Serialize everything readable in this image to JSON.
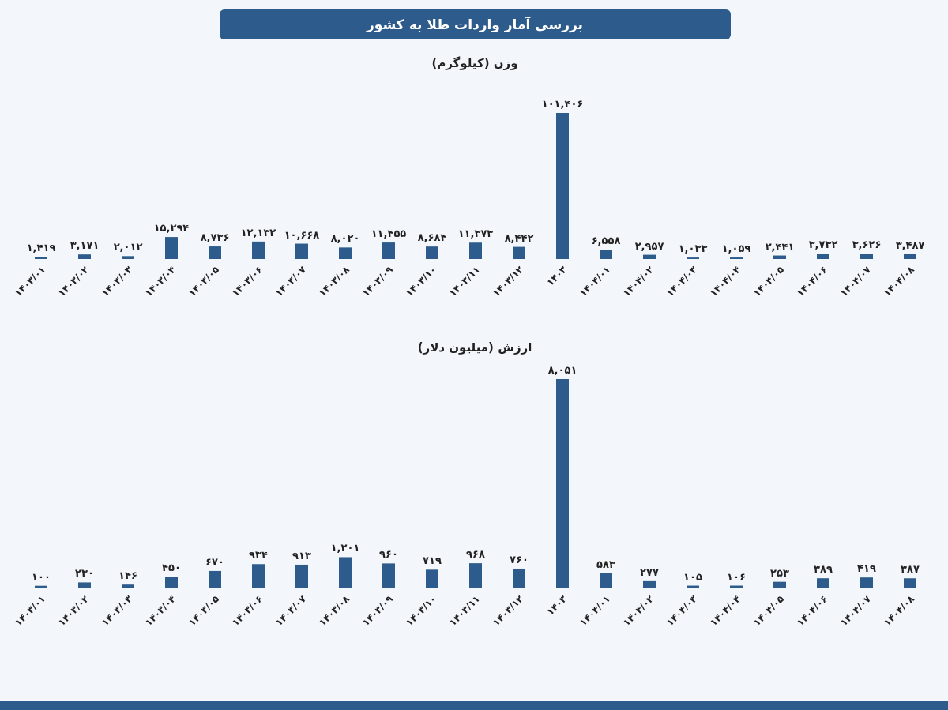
{
  "chart_data": [
    {
      "type": "bar",
      "title": "بررسی آمار واردات طلا به کشور",
      "subtitle": "وزن (کیلوگرم)",
      "color": "#2d5b8b",
      "categories": [
        "۱۴۰۳/۰۱",
        "۱۴۰۳/۰۲",
        "۱۴۰۳/۰۳",
        "۱۴۰۳/۰۴",
        "۱۴۰۳/۰۵",
        "۱۴۰۳/۰۶",
        "۱۴۰۳/۰۷",
        "۱۴۰۳/۰۸",
        "۱۴۰۳/۰۹",
        "۱۴۰۳/۱۰",
        "۱۴۰۳/۱۱",
        "۱۴۰۳/۱۲",
        "۱۴۰۳",
        "۱۴۰۴/۰۱",
        "۱۴۰۴/۰۲",
        "۱۴۰۴/۰۳",
        "۱۴۰۴/۰۴",
        "۱۴۰۴/۰۵",
        "۱۴۰۴/۰۶",
        "۱۴۰۴/۰۷",
        "۱۴۰۴/۰۸"
      ],
      "values": [
        1419,
        3171,
        2012,
        15294,
        8736,
        12132,
        10668,
        8020,
        11455,
        8684,
        11373,
        8442,
        101406,
        6558,
        2957,
        1033,
        1059,
        2441,
        3732,
        3626,
        3487
      ],
      "value_labels": [
        "۱,۴۱۹",
        "۳,۱۷۱",
        "۲,۰۱۲",
        "۱۵,۲۹۴",
        "۸,۷۳۶",
        "۱۲,۱۳۲",
        "۱۰,۶۶۸",
        "۸,۰۲۰",
        "۱۱,۴۵۵",
        "۸,۶۸۴",
        "۱۱,۳۷۳",
        "۸,۴۴۲",
        "۱۰۱,۴۰۶",
        "۶,۵۵۸",
        "۲,۹۵۷",
        "۱,۰۳۳",
        "۱,۰۵۹",
        "۲,۴۴۱",
        "۳,۷۳۲",
        "۳,۶۲۶",
        "۳,۴۸۷"
      ]
    },
    {
      "type": "bar",
      "title": "ارزش (میلیون دلار)",
      "color": "#2d5b8b",
      "categories": [
        "۱۴۰۳/۰۱",
        "۱۴۰۳/۰۲",
        "۱۴۰۳/۰۳",
        "۱۴۰۳/۰۴",
        "۱۴۰۳/۰۵",
        "۱۴۰۳/۰۶",
        "۱۴۰۳/۰۷",
        "۱۴۰۳/۰۸",
        "۱۴۰۳/۰۹",
        "۱۴۰۳/۱۰",
        "۱۴۰۳/۱۱",
        "۱۴۰۳/۱۲",
        "۱۴۰۳",
        "۱۴۰۴/۰۱",
        "۱۴۰۴/۰۲",
        "۱۴۰۴/۰۳",
        "۱۴۰۴/۰۴",
        "۱۴۰۴/۰۵",
        "۱۴۰۴/۰۶",
        "۱۴۰۴/۰۷",
        "۱۴۰۴/۰۸"
      ],
      "values": [
        100,
        230,
        146,
        450,
        670,
        934,
        913,
        1201,
        960,
        719,
        968,
        760,
        8051,
        583,
        277,
        105,
        106,
        253,
        389,
        419,
        387
      ],
      "value_labels": [
        "۱۰۰",
        "۲۳۰",
        "۱۴۶",
        "۴۵۰",
        "۶۷۰",
        "۹۳۴",
        "۹۱۳",
        "۱,۲۰۱",
        "۹۶۰",
        "۷۱۹",
        "۹۶۸",
        "۷۶۰",
        "۸,۰۵۱",
        "۵۸۳",
        "۲۷۷",
        "۱۰۵",
        "۱۰۶",
        "۲۵۳",
        "۳۸۹",
        "۴۱۹",
        "۳۸۷"
      ]
    }
  ]
}
